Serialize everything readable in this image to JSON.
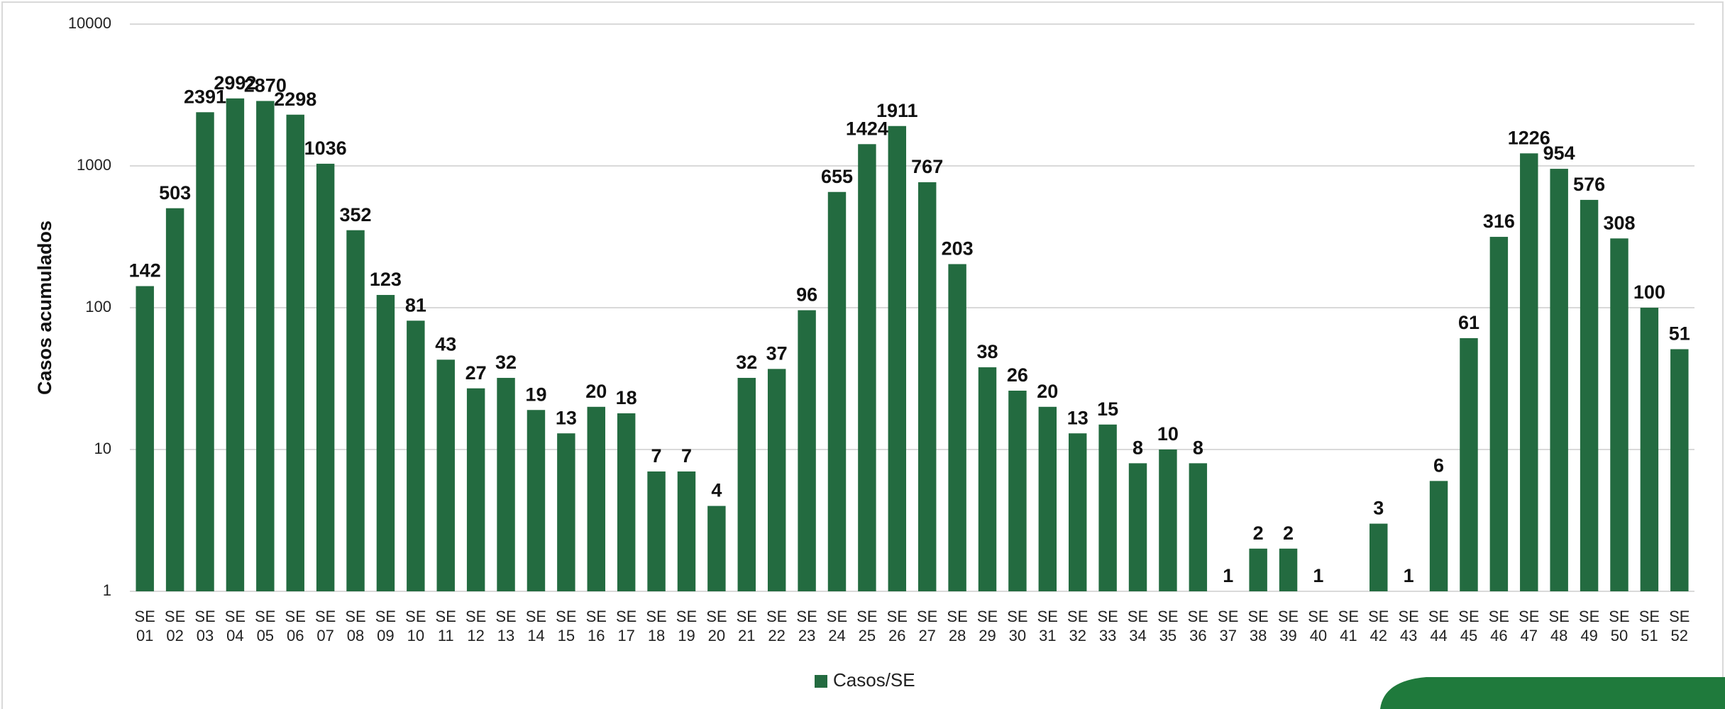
{
  "chart_data": {
    "type": "bar",
    "y_label": "Casos acumulados",
    "yscale": "log",
    "ylim": [
      1,
      10000
    ],
    "yticks": [
      1,
      10,
      100,
      1000,
      10000
    ],
    "grid": true,
    "legend": "bottom",
    "categories": [
      "SE 01",
      "SE 02",
      "SE 03",
      "SE 04",
      "SE 05",
      "SE 06",
      "SE 07",
      "SE 08",
      "SE 09",
      "SE 10",
      "SE 11",
      "SE 12",
      "SE 13",
      "SE 14",
      "SE 15",
      "SE 16",
      "SE 17",
      "SE 18",
      "SE 19",
      "SE 20",
      "SE 21",
      "SE 22",
      "SE 23",
      "SE 24",
      "SE 25",
      "SE 26",
      "SE 27",
      "SE 28",
      "SE 29",
      "SE 30",
      "SE 31",
      "SE 32",
      "SE 33",
      "SE 34",
      "SE 35",
      "SE 36",
      "SE 37",
      "SE 38",
      "SE 39",
      "SE 40",
      "SE 41",
      "SE 42",
      "SE 43",
      "SE 44",
      "SE 45",
      "SE 46",
      "SE 47",
      "SE 48",
      "SE 49",
      "SE 50",
      "SE 51",
      "SE 52"
    ],
    "series": [
      {
        "name": "Casos/SE",
        "color": "#236b40",
        "values": [
          142,
          503,
          2391,
          2992,
          2870,
          2298,
          1036,
          352,
          123,
          81,
          43,
          27,
          32,
          19,
          13,
          20,
          18,
          7,
          7,
          4,
          32,
          37,
          96,
          655,
          1424,
          1911,
          767,
          203,
          38,
          26,
          20,
          13,
          15,
          8,
          10,
          8,
          1,
          2,
          2,
          1,
          null,
          3,
          1,
          6,
          61,
          316,
          1226,
          954,
          576,
          308,
          100,
          51
        ]
      }
    ]
  }
}
